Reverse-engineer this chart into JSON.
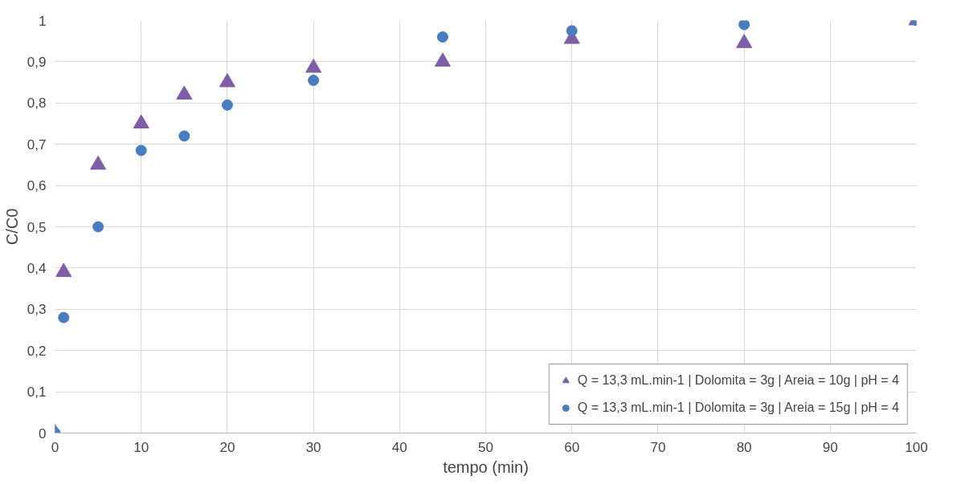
{
  "chart_data": {
    "type": "scatter",
    "xlabel": "tempo (min)",
    "ylabel": "C/C0",
    "xlim": [
      0,
      100
    ],
    "ylim": [
      0,
      1
    ],
    "xticks": [
      0,
      10,
      20,
      30,
      40,
      50,
      60,
      70,
      80,
      90,
      100
    ],
    "yticks": [
      0,
      {
        "value": 0.1,
        "label": "0,1"
      },
      {
        "value": 0.2,
        "label": "0,2"
      },
      {
        "value": 0.3,
        "label": "0,3"
      },
      {
        "value": 0.4,
        "label": "0,4"
      },
      {
        "value": 0.5,
        "label": "0,5"
      },
      {
        "value": 0.6,
        "label": "0,6"
      },
      {
        "value": 0.7,
        "label": "0,7"
      },
      {
        "value": 0.8,
        "label": "0,8"
      },
      {
        "value": 0.9,
        "label": "0,9"
      },
      1
    ],
    "grid": true,
    "legend": "bottom right",
    "series": [
      {
        "name": "Q = 13,3 mL.min-1 | Dolomita = 3g | Areia = 10g | pH = 4",
        "color": "#7e5ea6",
        "marker": "triangle",
        "x": [
          0,
          1,
          5,
          10,
          15,
          20,
          30,
          45,
          60,
          80,
          100
        ],
        "values": [
          0,
          0.39,
          0.65,
          0.75,
          0.82,
          0.85,
          0.885,
          0.9,
          0.955,
          0.945,
          1.0
        ]
      },
      {
        "name": "Q = 13,3 mL.min-1 | Dolomita = 3g | Areia = 15g | pH = 4",
        "color": "#4a7cc0",
        "marker": "circle",
        "x": [
          0,
          1,
          5,
          10,
          15,
          20,
          30,
          45,
          60,
          80,
          100
        ],
        "values": [
          0,
          0.28,
          0.5,
          0.685,
          0.72,
          0.795,
          0.855,
          0.96,
          0.975,
          0.99,
          1.0
        ]
      }
    ]
  }
}
